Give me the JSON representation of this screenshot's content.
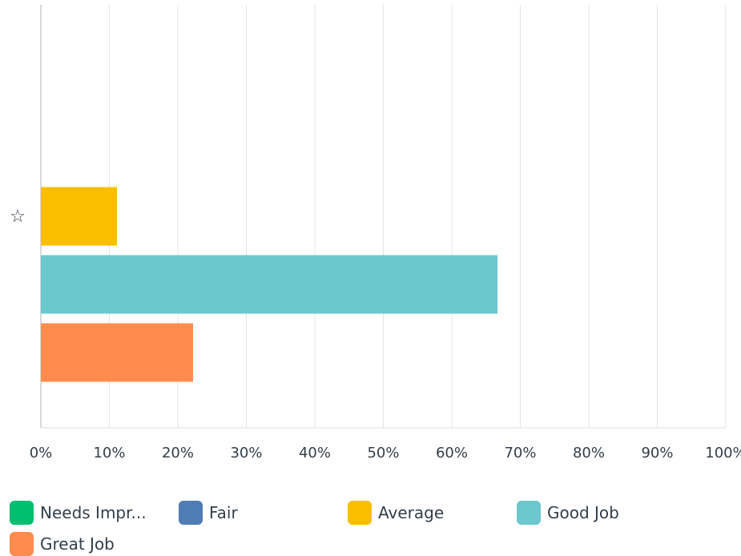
{
  "chart_data": {
    "type": "bar",
    "orientation": "horizontal",
    "categories": [
      "☆"
    ],
    "series": [
      {
        "name": "Needs Impr...",
        "color": "#00bf6f",
        "values": [
          0
        ]
      },
      {
        "name": "Fair",
        "color": "#507cb6",
        "values": [
          0
        ]
      },
      {
        "name": "Average",
        "color": "#f9be00",
        "values": [
          11.11
        ]
      },
      {
        "name": "Good Job",
        "color": "#6bc8cd",
        "values": [
          66.67
        ]
      },
      {
        "name": "Great Job",
        "color": "#ff8b4f",
        "values": [
          22.22
        ]
      }
    ],
    "xlim": [
      0,
      100
    ],
    "x_ticks": [
      "0%",
      "10%",
      "20%",
      "30%",
      "40%",
      "50%",
      "60%",
      "70%",
      "80%",
      "90%",
      "100%"
    ],
    "grid": true,
    "legend_position": "bottom"
  }
}
